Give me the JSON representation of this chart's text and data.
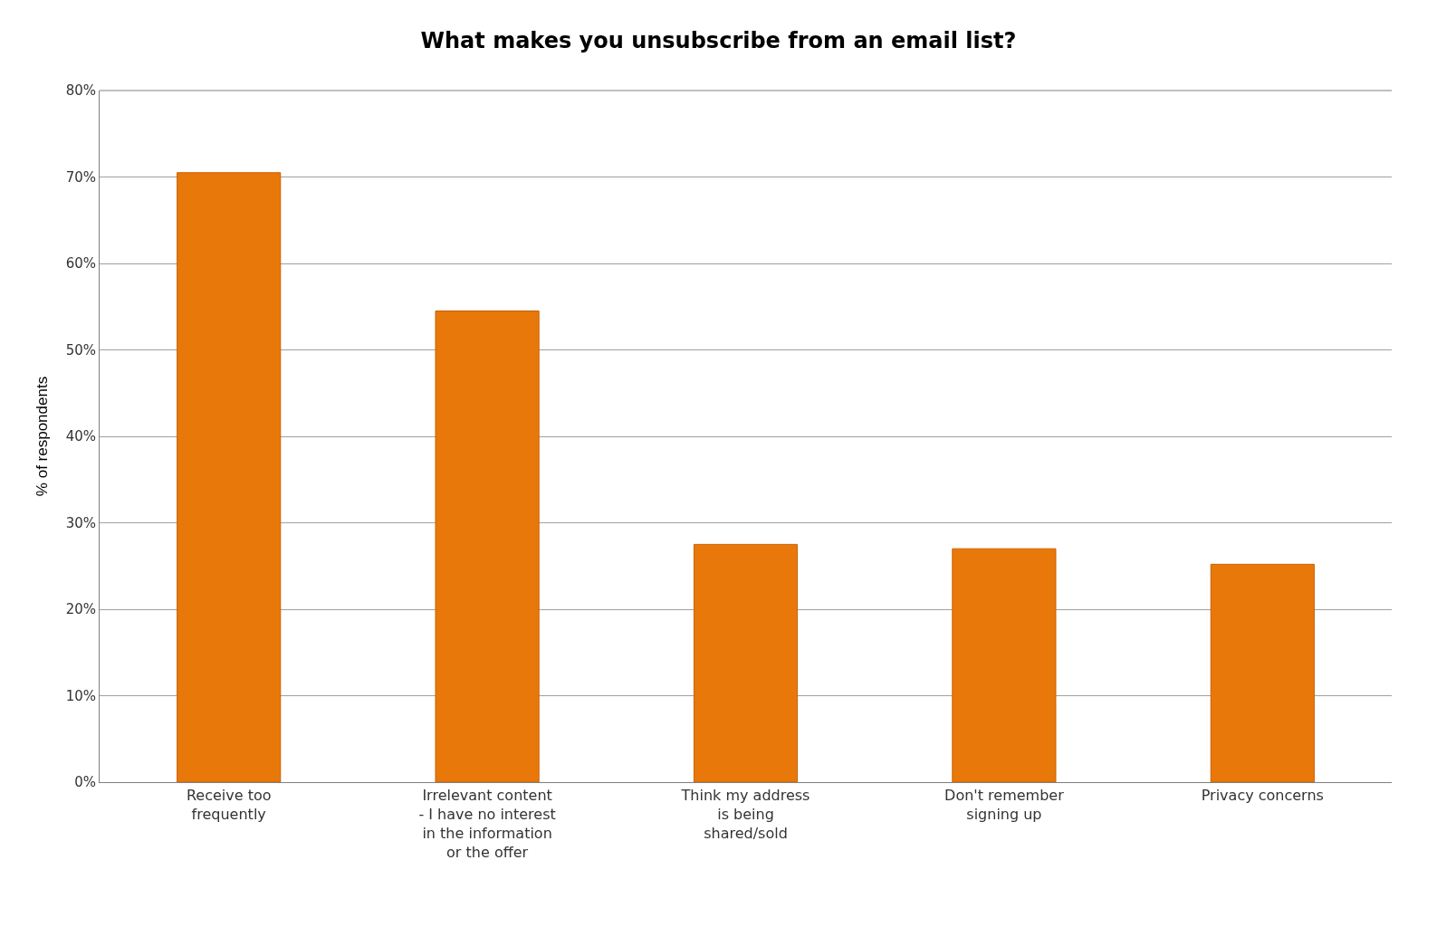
{
  "chart_data": {
    "type": "bar",
    "title": "What makes you unsubscribe from an email list?",
    "ylabel": "% of respondents",
    "categories": [
      "Receive too\nfrequently",
      "Irrelevant content\n- I have no interest\nin the information\nor the offer",
      "Think my address\nis being\nshared/sold",
      "Don't remember\nsigning up",
      "Privacy concerns"
    ],
    "values": [
      70.5,
      54.5,
      27.5,
      27,
      25.2
    ],
    "color": "#e9780a",
    "ylim": [
      0,
      80
    ],
    "yticks": [
      {
        "value": 0,
        "label": "0%"
      },
      {
        "value": 10,
        "label": "10%"
      },
      {
        "value": 20,
        "label": "20%"
      },
      {
        "value": 30,
        "label": "30%"
      },
      {
        "value": 40,
        "label": "40%"
      },
      {
        "value": 50,
        "label": "50%"
      },
      {
        "value": 60,
        "label": "60%"
      },
      {
        "value": 70,
        "label": "70%"
      },
      {
        "value": 80,
        "label": "80%"
      }
    ],
    "grid": "y"
  }
}
